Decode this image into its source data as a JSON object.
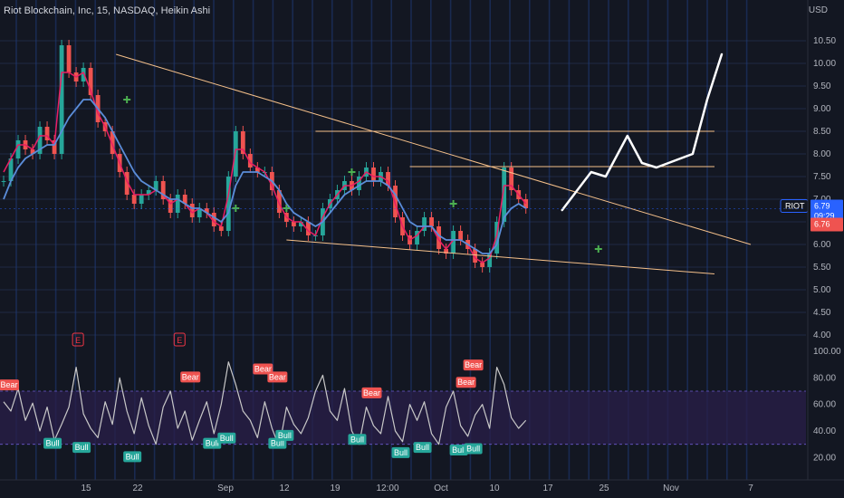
{
  "header": {
    "title": "Riot Blockchain, Inc, 15, NASDAQ, Heikin Ashi",
    "currency": "USD"
  },
  "colors": {
    "bg": "#131722",
    "grid": "#1f2a44",
    "blue_session": "#1e3a78",
    "candle_up": "#26a69a",
    "candle_down": "#ef5350",
    "ema_fast": "#e91e63",
    "ema_slow": "#5b8dd9",
    "trend": "#f5c08a",
    "rsi": "#c8c8c8",
    "rsi_band": "#2a1f4a",
    "bull": "#26a69a",
    "bear": "#ef5350",
    "projection": "#ffffff",
    "ticker_tag": "#2962ff",
    "prev_tag": "#ef5350"
  },
  "chart_data": [
    {
      "type": "line",
      "title": "Riot Blockchain, Inc, 15, NASDAQ, Heikin Ashi",
      "ylim": [
        3.5,
        11.0
      ],
      "yticks": [
        "10.50",
        "10.00",
        "9.50",
        "9.00",
        "8.50",
        "8.00",
        "7.50",
        "7.00",
        "6.50",
        "6.00",
        "5.50",
        "5.00",
        "4.50",
        "4.00"
      ],
      "xticks": [
        "15",
        "22",
        "Sep",
        "12",
        "19",
        "12:00",
        "Oct",
        "10",
        "17",
        "25",
        "Nov",
        "7"
      ],
      "series": [
        {
          "values": [
            7.4,
            7.9,
            8.3,
            8.1,
            8.0,
            8.6,
            8.3,
            8.0,
            10.4,
            9.8,
            9.6,
            9.9,
            9.3,
            8.7,
            8.5,
            8.0,
            7.6,
            7.1,
            6.9,
            7.1,
            7.2,
            7.4,
            7.0,
            6.7,
            7.1,
            6.9,
            6.6,
            6.8,
            6.7,
            6.4,
            6.3,
            7.5,
            8.5,
            8.0,
            7.7,
            7.6,
            7.6,
            7.2,
            6.7,
            6.5,
            6.4,
            6.5,
            6.2,
            6.2,
            6.8,
            7.0,
            7.2,
            7.4,
            7.2,
            7.5,
            7.7,
            7.4,
            7.6,
            7.3,
            6.6,
            6.2,
            6.0,
            6.3,
            6.6,
            6.4,
            5.9,
            5.8,
            6.3,
            6.1,
            5.9,
            5.6,
            5.5,
            5.8,
            6.5,
            7.7,
            7.2,
            7.0,
            6.8
          ]
        },
        {
          "values": [
            7.6,
            7.9,
            8.2,
            8.2,
            8.1,
            8.4,
            8.4,
            8.2,
            9.8,
            9.8,
            9.7,
            9.8,
            9.4,
            8.9,
            8.6,
            8.2,
            7.8,
            7.4,
            7.1,
            7.1,
            7.1,
            7.2,
            7.1,
            6.9,
            7.0,
            6.9,
            6.7,
            6.8,
            6.7,
            6.5,
            6.4,
            7.1,
            8.1,
            8.1,
            7.8,
            7.7,
            7.6,
            7.3,
            6.9,
            6.6,
            6.5,
            6.5,
            6.3,
            6.2,
            6.6,
            6.9,
            7.1,
            7.3,
            7.3,
            7.4,
            7.6,
            7.5,
            7.5,
            7.4,
            6.9,
            6.4,
            6.1,
            6.2,
            6.4,
            6.4,
            6.1,
            5.9,
            6.1,
            6.1,
            6.0,
            5.7,
            5.6,
            5.7,
            6.2,
            7.3,
            7.3,
            7.1,
            6.9
          ]
        },
        {
          "values": [
            7.0,
            7.4,
            7.7,
            7.9,
            8.0,
            8.1,
            8.2,
            8.2,
            8.5,
            8.8,
            9.0,
            9.2,
            9.2,
            9.0,
            8.8,
            8.5,
            8.2,
            7.9,
            7.6,
            7.4,
            7.3,
            7.2,
            7.1,
            7.0,
            7.0,
            6.9,
            6.8,
            6.8,
            6.7,
            6.6,
            6.5,
            6.7,
            7.3,
            7.6,
            7.6,
            7.6,
            7.5,
            7.4,
            7.2,
            6.9,
            6.7,
            6.6,
            6.5,
            6.4,
            6.5,
            6.7,
            6.9,
            7.1,
            7.2,
            7.3,
            7.4,
            7.4,
            7.4,
            7.3,
            7.1,
            6.8,
            6.5,
            6.4,
            6.4,
            6.4,
            6.2,
            6.1,
            6.1,
            6.1,
            6.0,
            5.9,
            5.8,
            5.8,
            6.0,
            6.6,
            6.8,
            6.9,
            6.8
          ]
        }
      ],
      "trendlines": [
        {
          "from": [
            15.5,
            10.2
          ],
          "to": [
            103,
            6.0
          ]
        },
        {
          "from": [
            39,
            6.1
          ],
          "to": [
            98,
            5.35
          ]
        },
        {
          "from": [
            43,
            8.5
          ],
          "to": [
            98,
            8.5
          ]
        },
        {
          "from": [
            56,
            7.72
          ],
          "to": [
            98,
            7.72
          ]
        },
        {
          "from": [
            77,
            7.72
          ],
          "to": [
            98,
            7.72
          ]
        }
      ],
      "projection": [
        [
          77,
          6.76
        ],
        [
          81,
          7.6
        ],
        [
          83,
          7.5
        ],
        [
          86,
          8.4
        ],
        [
          88,
          7.8
        ],
        [
          90,
          7.7
        ],
        [
          95,
          8.0
        ],
        [
          97,
          9.2
        ],
        [
          99,
          10.2
        ]
      ],
      "markers_green": [
        [
          17,
          9.2
        ],
        [
          32,
          6.8
        ],
        [
          39,
          6.8
        ],
        [
          48,
          7.6
        ],
        [
          62,
          6.9
        ],
        [
          82,
          5.9
        ]
      ],
      "earnings": [
        13,
        27
      ],
      "last_price": "6.79",
      "countdown": "09:29",
      "prev_close": "6.76",
      "ticker": "RIOT"
    },
    {
      "type": "line",
      "ylim": [
        10,
        100
      ],
      "yticks": [
        "100.00",
        "80.00",
        "60.00",
        "40.00",
        "20.00"
      ],
      "series": [
        {
          "values": [
            62,
            55,
            72,
            48,
            61,
            40,
            58,
            33,
            45,
            58,
            88,
            53,
            42,
            35,
            62,
            45,
            80,
            55,
            38,
            65,
            44,
            30,
            58,
            70,
            42,
            55,
            33,
            48,
            62,
            38,
            60,
            92,
            75,
            55,
            48,
            35,
            62,
            42,
            28,
            58,
            45,
            38,
            50,
            70,
            82,
            55,
            48,
            72,
            40,
            30,
            58,
            44,
            38,
            66,
            40,
            32,
            60,
            48,
            62,
            38,
            30,
            58,
            70,
            44,
            36,
            52,
            60,
            42,
            88,
            75,
            50,
            42,
            48
          ]
        }
      ],
      "labels_bull": [
        [
          6,
          30
        ],
        [
          10,
          27
        ],
        [
          17,
          20
        ],
        [
          28,
          30
        ],
        [
          30,
          34
        ],
        [
          37,
          30
        ],
        [
          38,
          36
        ],
        [
          48,
          33
        ],
        [
          54,
          23
        ],
        [
          57,
          27
        ],
        [
          62,
          25
        ],
        [
          64,
          26
        ]
      ],
      "labels_bear": [
        [
          0,
          74
        ],
        [
          25,
          80
        ],
        [
          35,
          86
        ],
        [
          37,
          80
        ],
        [
          50,
          68
        ],
        [
          63,
          76
        ],
        [
          64,
          89
        ]
      ]
    }
  ],
  "earnings_label": "E",
  "bull_label": "Bull",
  "bear_label": "Bear"
}
